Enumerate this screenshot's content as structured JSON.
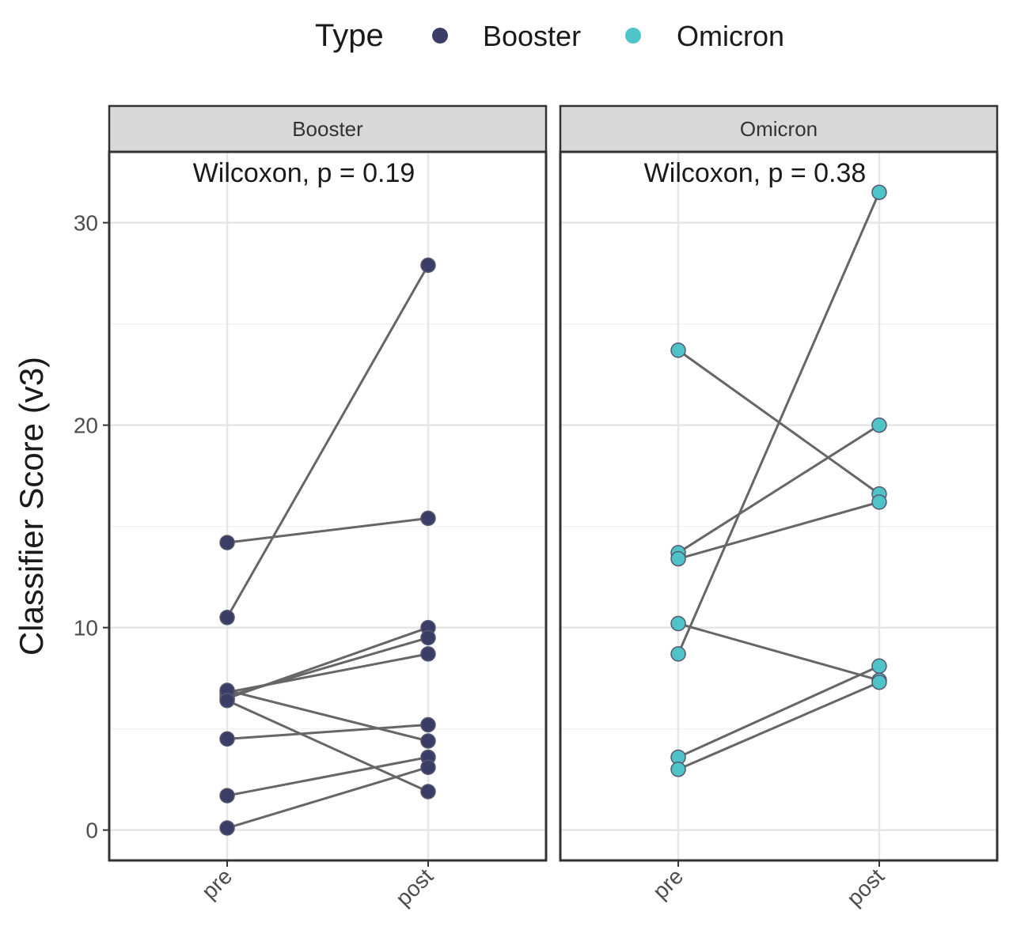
{
  "chart_data": {
    "type": "scatter",
    "style": "paired dot plot with connecting lines, faceted",
    "ylabel": "Classifier Score (v3)",
    "ylim": [
      -1.5,
      33.5
    ],
    "yticks": [
      0,
      10,
      20,
      30
    ],
    "categories": [
      "pre",
      "post"
    ],
    "grid": true,
    "legend": {
      "title": "Type",
      "position": "top",
      "entries": [
        {
          "name": "Booster",
          "color": "#3b3d66"
        },
        {
          "name": "Omicron",
          "color": "#4fc4c8"
        }
      ]
    },
    "facets": [
      {
        "strip": "Booster",
        "annotation": "Wilcoxon, p = 0.19",
        "color": "#3b3d66",
        "pairs": [
          {
            "pre": 10.5,
            "post": 27.9
          },
          {
            "pre": 14.2,
            "post": 15.4
          },
          {
            "pre": 6.5,
            "post": 10.0
          },
          {
            "pre": 6.6,
            "post": 9.5
          },
          {
            "pre": 6.8,
            "post": 8.7
          },
          {
            "pre": 6.9,
            "post": 4.4
          },
          {
            "pre": 6.4,
            "post": 1.9
          },
          {
            "pre": 4.5,
            "post": 5.2
          },
          {
            "pre": 1.7,
            "post": 3.6
          },
          {
            "pre": 0.1,
            "post": 3.1
          }
        ]
      },
      {
        "strip": "Omicron",
        "annotation": "Wilcoxon, p = 0.38",
        "color": "#4fc4c8",
        "pairs": [
          {
            "pre": 8.7,
            "post": 31.5
          },
          {
            "pre": 23.7,
            "post": 16.6
          },
          {
            "pre": 13.7,
            "post": 20.0
          },
          {
            "pre": 13.4,
            "post": 16.2
          },
          {
            "pre": 10.2,
            "post": 7.4
          },
          {
            "pre": 3.6,
            "post": 8.1
          },
          {
            "pre": 3.0,
            "post": 7.3
          }
        ]
      }
    ]
  }
}
